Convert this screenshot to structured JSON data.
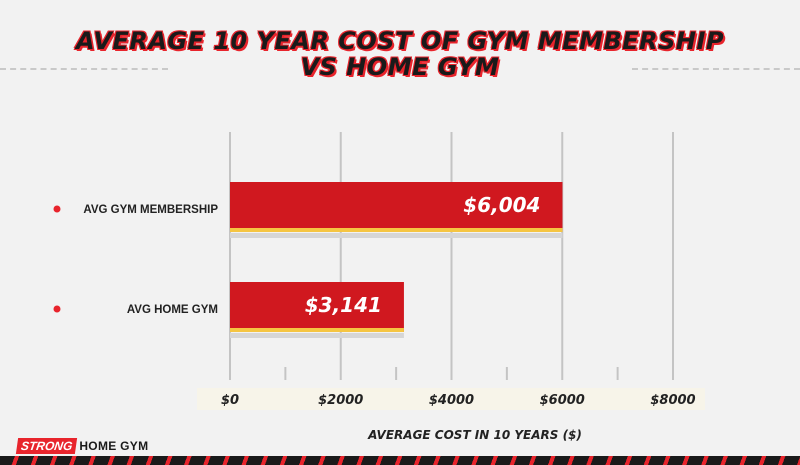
{
  "title_line1": "AVERAGE 10 YEAR COST OF GYM MEMBERSHIP",
  "title_line2": "VS HOME GYM",
  "brand": {
    "strong": "STRONG",
    "rest": "HOME GYM"
  },
  "colors": {
    "bar": "#d0181f",
    "bar_highlight": "#f5c542",
    "bar_shadow": "#d6d6d6",
    "grid": "#c4c4c4",
    "accent": "#e8242c"
  },
  "chart_data": {
    "type": "bar",
    "orientation": "horizontal",
    "title": "AVERAGE 10 YEAR COST OF GYM MEMBERSHIP VS HOME GYM",
    "categories": [
      "AVG GYM MEMBERSHIP",
      "AVG HOME GYM"
    ],
    "values": [
      6004,
      3141
    ],
    "data_labels": [
      "$6,004",
      "$3,141"
    ],
    "xlabel": "AVERAGE COST IN 10 YEARS ($)",
    "ylabel": "",
    "xlim": [
      0,
      8000
    ],
    "xticks": [
      0,
      2000,
      4000,
      6000,
      8000
    ],
    "xtick_labels": [
      "$0",
      "$2000",
      "$4000",
      "$6000",
      "$8000"
    ],
    "grid": true,
    "legend": "none"
  }
}
